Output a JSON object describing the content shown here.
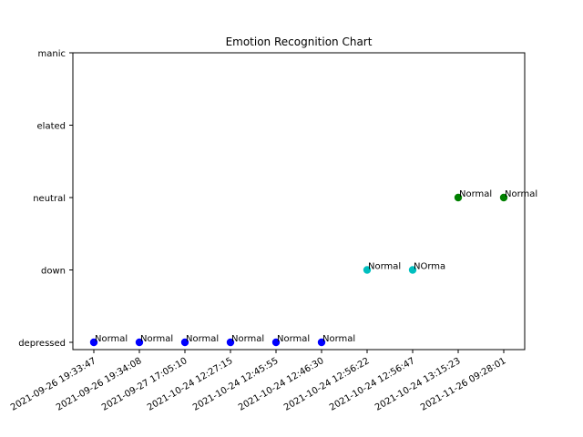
{
  "chart_data": {
    "type": "scatter",
    "title": "Emotion Recognition Chart",
    "xlabel": "",
    "ylabel": "",
    "x": [
      "2021-09-26 19:33:47",
      "2021-09-26 19:34:08",
      "2021-09-27 17:05:10",
      "2021-10-24 12:27:15",
      "2021-10-24 12:45:55",
      "2021-10-24 12:46:30",
      "2021-10-24 12:56:22",
      "2021-10-24 12:56:47",
      "2021-10-24 13:15:23",
      "2021-11-26 09:28:01"
    ],
    "y_categories": [
      "depressed",
      "down",
      "neutral",
      "elated",
      "manic"
    ],
    "y": [
      "depressed",
      "depressed",
      "depressed",
      "depressed",
      "depressed",
      "depressed",
      "down",
      "down",
      "neutral",
      "neutral"
    ],
    "labels": [
      "Normal",
      "Normal",
      "Normal",
      "Normal",
      "Normal",
      "Normal",
      "Normal",
      "NOrma",
      "Normal",
      "Normal"
    ],
    "point_colors": [
      "#0000ff",
      "#0000ff",
      "#0000ff",
      "#0000ff",
      "#0000ff",
      "#0000ff",
      "#00bfbf",
      "#00bfbf",
      "#008000",
      "#008000"
    ],
    "grid": false,
    "legend": false
  }
}
